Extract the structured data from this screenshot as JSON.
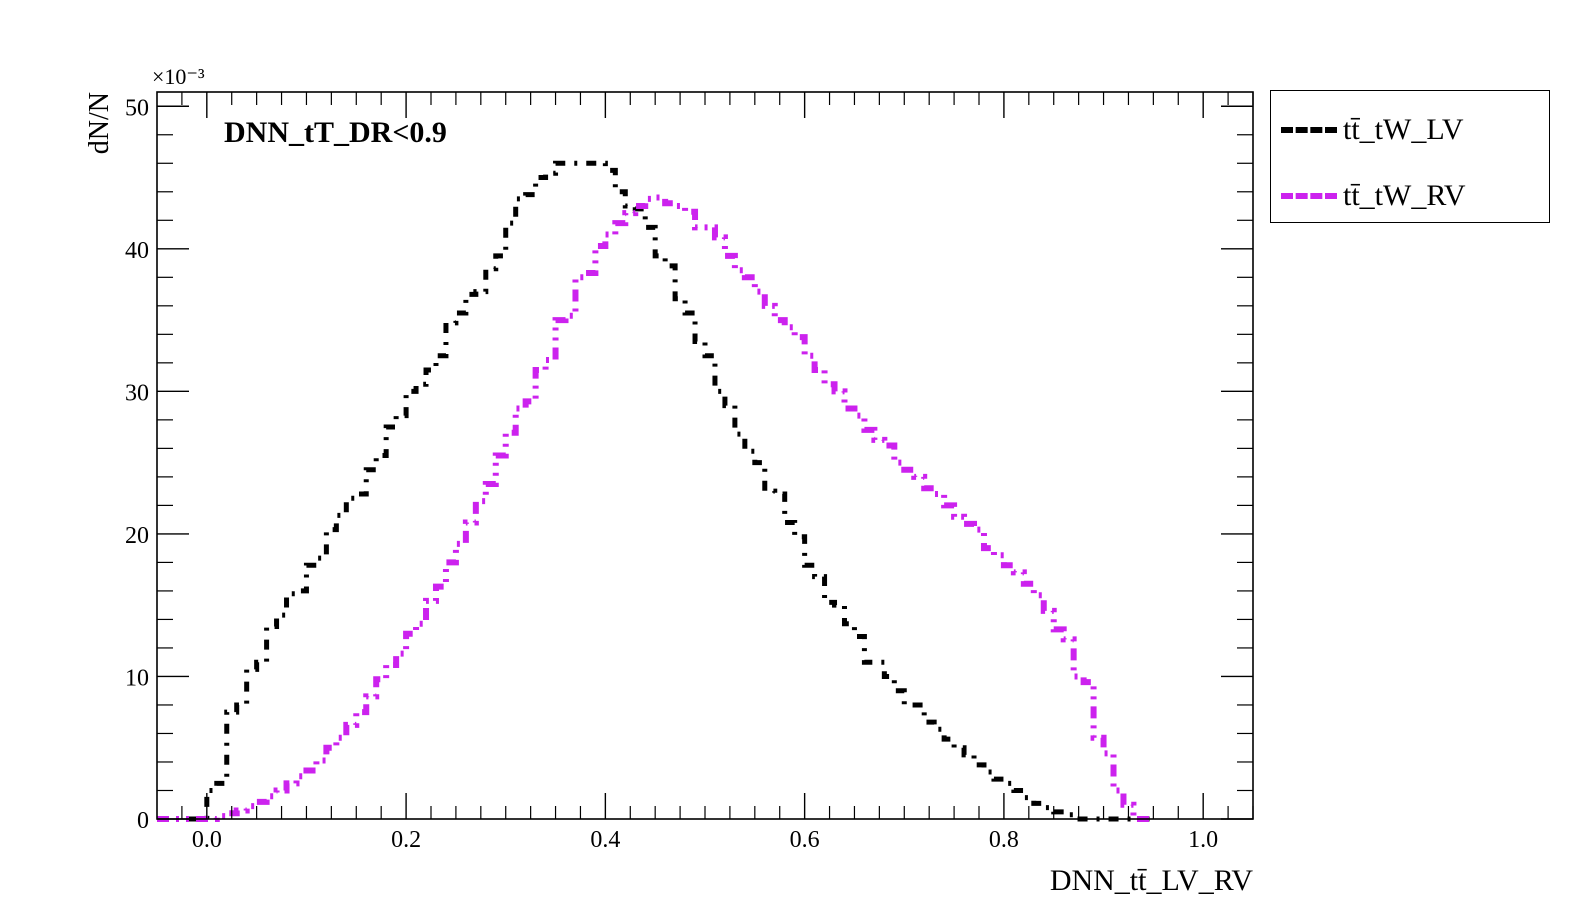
{
  "chart_data": {
    "type": "line",
    "style": "step-histogram",
    "title": "DNN_tT_DR<0.9",
    "xlabel": "DNN_tt̄_LV_RV",
    "ylabel": "dN/N",
    "y_multiplier": "×10⁻³",
    "xlim": [
      -0.05,
      1.05
    ],
    "ylim": [
      0,
      51
    ],
    "x_ticks": [
      "0.0",
      "0.2",
      "0.4",
      "0.6",
      "0.8",
      "1.0"
    ],
    "y_ticks": [
      "0",
      "10",
      "20",
      "30",
      "40",
      "50"
    ],
    "grid": false,
    "legend_position": "outside-top-right",
    "bin_start": -0.05,
    "bin_width": 0.01,
    "series": [
      {
        "name": "tt̄_tW_LV",
        "color": "#000000",
        "line_style": "dash-dot",
        "values": [
          0,
          0,
          0,
          0,
          0,
          2,
          2.5,
          7.5,
          8,
          10.5,
          11,
          13.5,
          14.3,
          15.8,
          16,
          17.8,
          18.3,
          20.3,
          21.3,
          22.5,
          22.8,
          24.5,
          25.5,
          27.5,
          28.3,
          30,
          30.5,
          31.5,
          32.5,
          34.8,
          35.5,
          36.8,
          37,
          38.6,
          39.5,
          41.8,
          43.5,
          43.8,
          45,
          45.3,
          46,
          46,
          46,
          46,
          46,
          45.5,
          44,
          43,
          42.8,
          41.5,
          39.5,
          38.8,
          36.5,
          35.5,
          33.5,
          32.5,
          30,
          29,
          27,
          25.8,
          25,
          23,
          22.8,
          20.8,
          19.8,
          17.8,
          17,
          15.2,
          15,
          13.7,
          12.8,
          11,
          11,
          10,
          9,
          8,
          8,
          6.8,
          6.3,
          5.6,
          5,
          4.5,
          3.8,
          3.3,
          2.8,
          2.5,
          2,
          1.5,
          1.1,
          0.8,
          0.5,
          0.3,
          0,
          0,
          0,
          0,
          0,
          0,
          0,
          0
        ]
      },
      {
        "name": "tt̄_tW_RV",
        "color": "#cc22ee",
        "line_style": "dash-dot-dot",
        "values": [
          0,
          0,
          0,
          0,
          0,
          0,
          0.2,
          0.4,
          0.6,
          0.9,
          1.2,
          1.6,
          2,
          2.5,
          3,
          3.4,
          4.1,
          5,
          5.7,
          6.6,
          7.5,
          8.6,
          9.8,
          10.8,
          11.6,
          13,
          13.7,
          15.3,
          16.3,
          18,
          19.3,
          20.8,
          22.3,
          23.5,
          25.5,
          27.1,
          28.8,
          29.3,
          31.5,
          32.2,
          35,
          35.3,
          38,
          38.3,
          40.2,
          41,
          41.8,
          42.5,
          43,
          43.5,
          43.6,
          43.2,
          43,
          42.6,
          41.5,
          41.5,
          40.8,
          39.5,
          38.5,
          38,
          37,
          36,
          35,
          34.5,
          33.8,
          32.5,
          31.5,
          30.5,
          30,
          28.8,
          28.3,
          27.3,
          26.6,
          26.2,
          25,
          24.5,
          24,
          23.2,
          22.8,
          22,
          21.2,
          20.7,
          20.3,
          19,
          18.5,
          17.8,
          17.3,
          16.5,
          15.7,
          14.6,
          13.3,
          12.6,
          10,
          9.6,
          5.7,
          4.6,
          2,
          1,
          0,
          0
        ]
      }
    ]
  }
}
